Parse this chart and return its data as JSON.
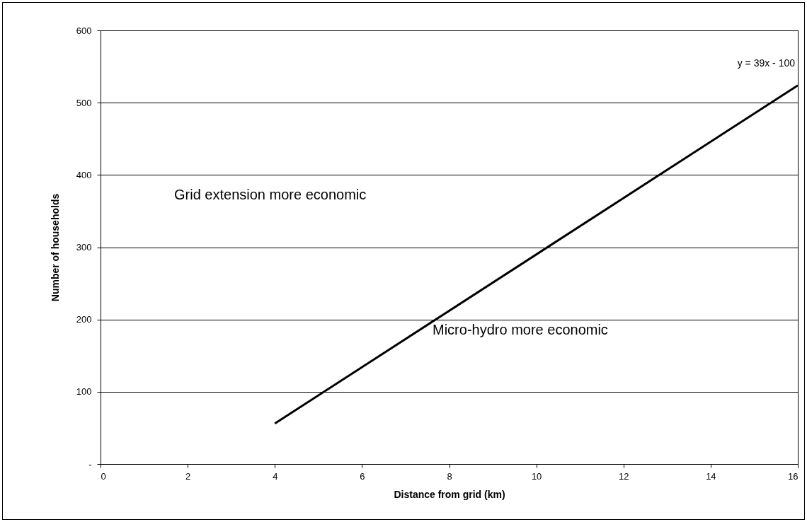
{
  "chart_data": {
    "type": "line",
    "xlabel": "Distance from grid (km)",
    "ylabel": "Number of households",
    "x": [
      4,
      16
    ],
    "series": [
      {
        "color": "#000000",
        "values": [
          56,
          524
        ]
      }
    ],
    "xlim": [
      0,
      16
    ],
    "xticks": [
      0,
      2,
      4,
      6,
      8,
      10,
      12,
      14,
      16
    ],
    "ylim": [
      0,
      600
    ],
    "yticks": [
      {
        "value": 0,
        "label": "-"
      },
      100,
      200,
      300,
      400,
      500,
      600
    ],
    "grid": "y",
    "marker": "none",
    "line_style": "solid",
    "annotations": [
      {
        "text": "y = 39x - 100",
        "x": 16,
        "y": 524
      },
      "Grid extension more economic",
      "Micro-hydro more economic"
    ]
  }
}
